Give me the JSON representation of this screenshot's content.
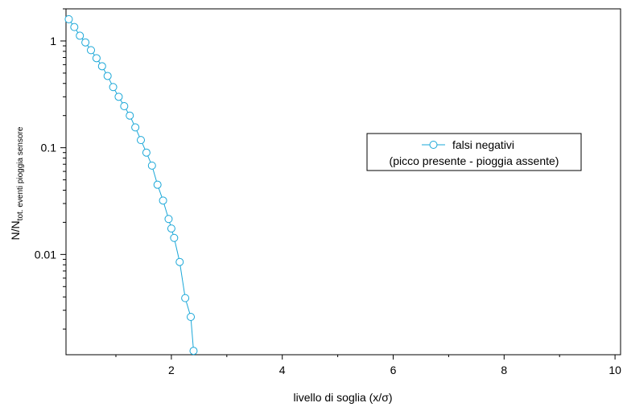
{
  "chart_data": {
    "type": "scatter",
    "title": "",
    "xlabel": "livello di soglia (x/σ)",
    "ylabel": {
      "main": "N/N",
      "subscript": "tot. eventi pioggia sensore"
    },
    "x_scale": "linear",
    "y_scale": "log",
    "xlim": [
      0.1,
      10.1
    ],
    "ylim": [
      0.00115,
      2.0
    ],
    "x_ticks": [
      2,
      4,
      6,
      8,
      10
    ],
    "x_tick_labels": [
      "2",
      "4",
      "6",
      "8",
      "10"
    ],
    "y_major_ticks": [
      1,
      0.1,
      0.01
    ],
    "y_tick_labels": [
      "1",
      "0.1",
      "0.01"
    ],
    "grid": false,
    "legend": {
      "placement": "right-center",
      "entries": [
        "falsi negativi",
        "(picco presente - pioggia assente)"
      ]
    },
    "color": "#1aa7d8",
    "series": [
      {
        "name": "falsi negativi",
        "marker": "open-circle",
        "line": true,
        "x": [
          0.15,
          0.25,
          0.35,
          0.45,
          0.55,
          0.65,
          0.75,
          0.85,
          0.95,
          1.05,
          1.15,
          1.25,
          1.35,
          1.45,
          1.55,
          1.65,
          1.75,
          1.85,
          1.95,
          2.0,
          2.05,
          2.15,
          2.25,
          2.35,
          2.4
        ],
        "y": [
          1.6,
          1.35,
          1.12,
          0.97,
          0.82,
          0.69,
          0.58,
          0.47,
          0.37,
          0.3,
          0.245,
          0.2,
          0.155,
          0.118,
          0.09,
          0.068,
          0.045,
          0.032,
          0.0215,
          0.0175,
          0.0143,
          0.0085,
          0.0039,
          0.0026,
          0.00125
        ]
      }
    ]
  }
}
